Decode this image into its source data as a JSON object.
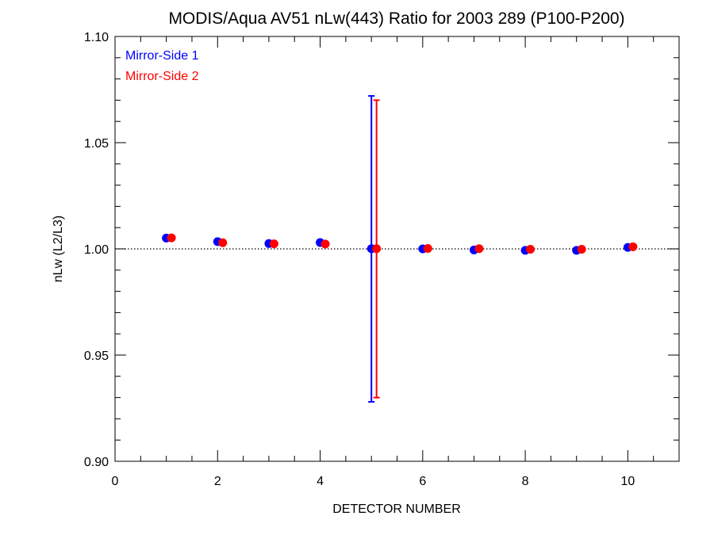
{
  "chart_data": {
    "type": "scatter",
    "title": "MODIS/Aqua AV51 nLw(443) Ratio for 2003 289 (P100-P200)",
    "xlabel": "DETECTOR NUMBER",
    "ylabel": "nLw (L2/L3)",
    "xlim": [
      0,
      11
    ],
    "ylim": [
      0.9,
      1.1
    ],
    "xticks": [
      0,
      2,
      4,
      6,
      8,
      10
    ],
    "xtick_labels": [
      "0",
      "2",
      "4",
      "6",
      "8",
      "10"
    ],
    "yticks": [
      0.9,
      0.95,
      1.0,
      1.05,
      1.1
    ],
    "ytick_labels": [
      "0.90",
      "0.95",
      "1.00",
      "1.05",
      "1.10"
    ],
    "reference_line": 1.0,
    "legend_position": "top-left",
    "series": [
      {
        "name": "Mirror-Side 1",
        "color": "#0000ff",
        "x": [
          1,
          2,
          3,
          4,
          5,
          6,
          7,
          8,
          9,
          10
        ],
        "y": [
          1.0051,
          1.0034,
          1.0025,
          1.003,
          1.0001,
          1.0,
          0.9995,
          0.9993,
          0.9993,
          1.0007
        ],
        "error_bars": [
          {
            "x": 5,
            "low": 0.928,
            "high": 1.072
          }
        ]
      },
      {
        "name": "Mirror-Side 2",
        "color": "#ff0000",
        "x": [
          1.1,
          2.1,
          3.1,
          4.1,
          5.1,
          6.1,
          7.1,
          8.1,
          9.1,
          10.1
        ],
        "y": [
          1.0052,
          1.0029,
          1.0024,
          1.0023,
          1.0001,
          1.0002,
          1.0001,
          0.9998,
          0.9998,
          1.001
        ],
        "error_bars": [
          {
            "x": 5.1,
            "low": 0.93,
            "high": 1.07
          }
        ]
      }
    ]
  }
}
